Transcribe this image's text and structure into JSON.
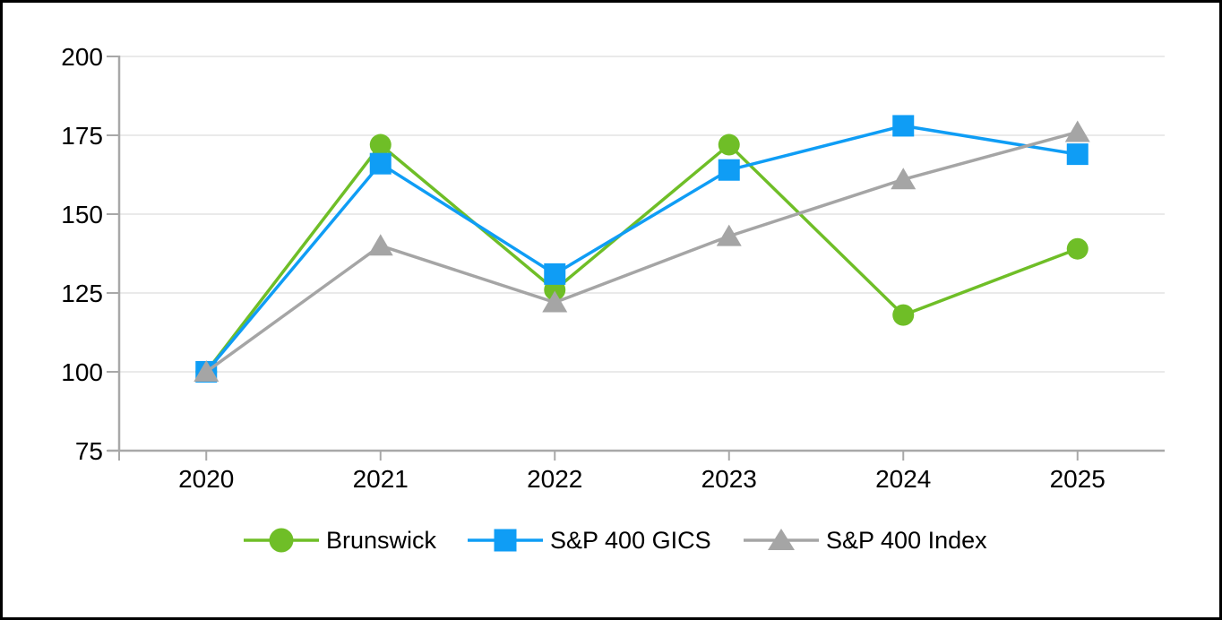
{
  "window": {
    "frame_border_color": "#000000",
    "background_color": "#ffffff"
  },
  "chart_data": {
    "type": "line",
    "title": "",
    "xlabel": "",
    "ylabel": "",
    "x": [
      "2020",
      "2021",
      "2022",
      "2023",
      "2024",
      "2025"
    ],
    "series": [
      {
        "name": "Brunswick",
        "marker": "circle",
        "color": "#6FBE27",
        "values": [
          100,
          172,
          126,
          172,
          118,
          139
        ]
      },
      {
        "name": "S&P 400 GICS",
        "marker": "square",
        "color": "#0F9DF5",
        "values": [
          100,
          166,
          131,
          164,
          178,
          169
        ]
      },
      {
        "name": "S&P 400 Index",
        "marker": "triangle",
        "color": "#A5A5A5",
        "values": [
          100,
          140,
          122,
          143,
          161,
          176
        ]
      }
    ],
    "y_ticks": [
      75,
      100,
      125,
      150,
      175,
      200
    ],
    "ylim": [
      75,
      200
    ],
    "grid": true,
    "legend_position": "bottom",
    "axis_color": "#A8A8A8",
    "gridline_color": "#E4E4E4",
    "label_color": "#000000"
  }
}
